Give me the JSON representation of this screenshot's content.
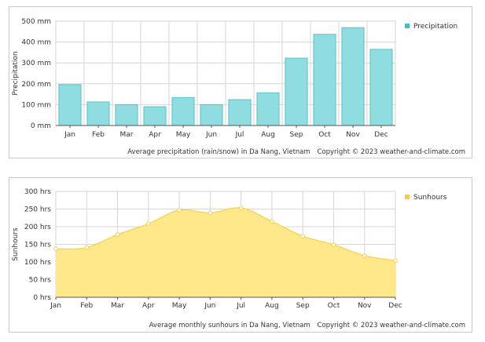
{
  "chart_data": [
    {
      "type": "bar",
      "ylabel": "Precipitation",
      "categories": [
        "Jan",
        "Feb",
        "Mar",
        "Apr",
        "May",
        "Jun",
        "Jul",
        "Aug",
        "Sep",
        "Oct",
        "Nov",
        "Dec"
      ],
      "series": [
        {
          "name": "Precipitation",
          "values": [
            196,
            113,
            100,
            90,
            134,
            100,
            124,
            157,
            323,
            437,
            469,
            365
          ]
        }
      ],
      "y_ticks": [
        "0 mm",
        "100 mm",
        "200 mm",
        "300 mm",
        "400 mm",
        "500 mm"
      ],
      "ylim": [
        0,
        500
      ],
      "grid": true,
      "legend_position": "top-right",
      "color": "#8fdde0",
      "edge_color": "#5cc0c6",
      "caption": "Average precipitation (rain/snow) in Da Nang, Vietnam",
      "copyright": "Copyright © 2023  weather-and-climate.com"
    },
    {
      "type": "area",
      "ylabel": "Sunhours",
      "x": [
        "Jan",
        "Feb",
        "Mar",
        "Apr",
        "May",
        "Jun",
        "Jul",
        "Aug",
        "Sep",
        "Oct",
        "Nov",
        "Dec"
      ],
      "series": [
        {
          "name": "Sunhours",
          "values": [
            137,
            141,
            178,
            208,
            247,
            239,
            253,
            215,
            173,
            149,
            118,
            104
          ]
        }
      ],
      "y_ticks": [
        "0 hrs",
        "50 hrs",
        "100 hrs",
        "150 hrs",
        "200 hrs",
        "250 hrs",
        "300 hrs"
      ],
      "ylim": [
        0,
        300
      ],
      "grid": true,
      "legend_position": "top-right",
      "color": "#ffe88a",
      "edge_color": "#f4cf4a",
      "caption": "Average monthly sunhours in Da Nang, Vietnam",
      "copyright": "Copyright © 2023  weather-and-climate.com"
    }
  ]
}
